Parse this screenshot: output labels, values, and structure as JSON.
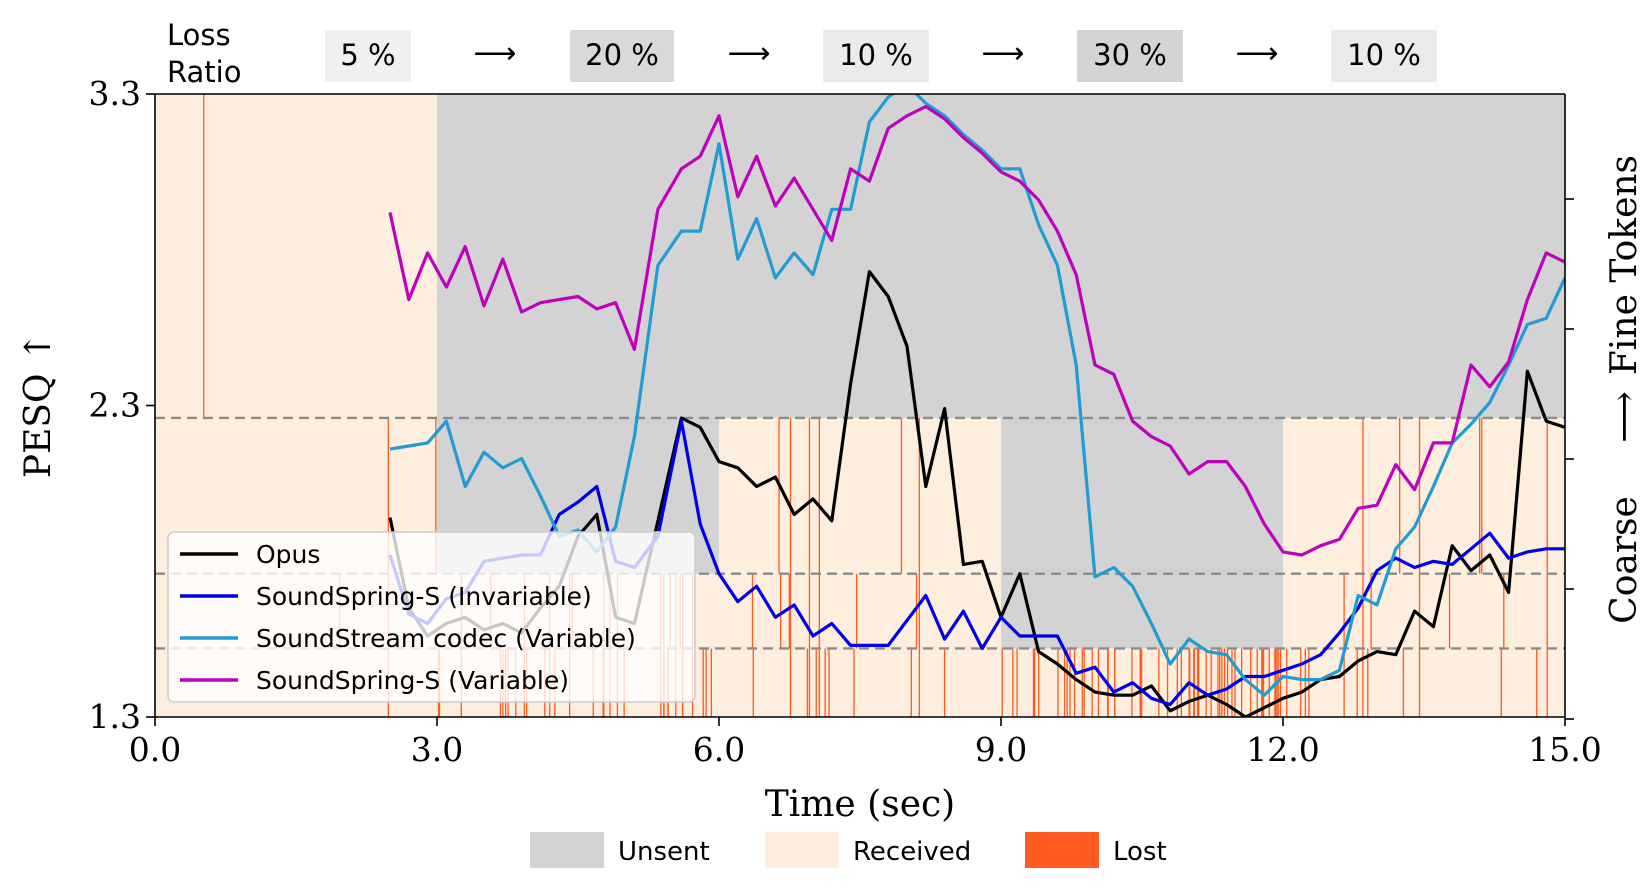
{
  "loss_ratio": {
    "label_line1": "Loss",
    "label_line2": "Ratio",
    "arrow": "⟶",
    "segments": [
      {
        "text": "5 %",
        "color": "#f0f0f0"
      },
      {
        "text": "20 %",
        "color": "#d9d9d9"
      },
      {
        "text": "10 %",
        "color": "#ebebeb"
      },
      {
        "text": "30 %",
        "color": "#d4d4d4"
      },
      {
        "text": "10 %",
        "color": "#ebebeb"
      }
    ]
  },
  "right_axis": {
    "label_bottom": "Coarse",
    "arrow": "⟶",
    "label_top": "Fine Tokens"
  },
  "colors": {
    "unsent": "#d3d3d3",
    "received": "#fdeedd",
    "lost": "#ff5a1f"
  },
  "chart_data": {
    "type": "line",
    "xlabel": "Time (sec)",
    "ylabel": "PESQ ↑",
    "xlim": [
      0,
      15
    ],
    "ylim": [
      1.3,
      3.3
    ],
    "xticks": [
      "0.0",
      "3.0",
      "6.0",
      "9.0",
      "12.0",
      "15.0"
    ],
    "yticks": [
      "1.3",
      "2.3",
      "3.3"
    ],
    "token_level_boundaries": [
      1.52,
      1.76,
      2.26
    ],
    "background_segments": [
      {
        "x0": 0,
        "x1": 3,
        "unsent_above": null
      },
      {
        "x0": 3,
        "x1": 6,
        "unsent_above": 1.76
      },
      {
        "x0": 6,
        "x1": 9,
        "unsent_above": 2.26
      },
      {
        "x0": 9,
        "x1": 12,
        "unsent_above": 1.52
      },
      {
        "x0": 12,
        "x1": 15,
        "unsent_above": 2.26
      }
    ],
    "series": [
      {
        "name": "Opus",
        "color": "#000000",
        "x": [
          2.5,
          2.7,
          2.9,
          3.1,
          3.3,
          3.5,
          3.7,
          3.9,
          4.1,
          4.3,
          4.5,
          4.7,
          4.9,
          5.1,
          5.35,
          5.6,
          5.8,
          6.0,
          6.2,
          6.4,
          6.6,
          6.8,
          7.0,
          7.2,
          7.4,
          7.6,
          7.8,
          8.0,
          8.2,
          8.4,
          8.6,
          8.8,
          9.0,
          9.2,
          9.4,
          9.6,
          9.8,
          10.0,
          10.2,
          10.4,
          10.6,
          10.8,
          11.0,
          11.2,
          11.4,
          11.6,
          11.8,
          12.0,
          12.2,
          12.4,
          12.6,
          12.8,
          13.0,
          13.2,
          13.4,
          13.6,
          13.8,
          14.0,
          14.2,
          14.4,
          14.6,
          14.8,
          15.0
        ],
        "values": [
          1.94,
          1.65,
          1.56,
          1.6,
          1.62,
          1.58,
          1.6,
          1.57,
          1.65,
          1.72,
          1.88,
          1.95,
          1.62,
          1.6,
          1.93,
          2.26,
          2.23,
          2.12,
          2.1,
          2.04,
          2.07,
          1.95,
          2.0,
          1.93,
          2.37,
          2.73,
          2.65,
          2.49,
          2.04,
          2.29,
          1.79,
          1.8,
          1.62,
          1.76,
          1.51,
          1.47,
          1.42,
          1.38,
          1.37,
          1.37,
          1.4,
          1.32,
          1.35,
          1.37,
          1.34,
          1.3,
          1.33,
          1.36,
          1.38,
          1.42,
          1.43,
          1.48,
          1.51,
          1.5,
          1.64,
          1.59,
          1.85,
          1.77,
          1.82,
          1.7,
          2.41,
          2.25,
          2.23
        ],
        "xmax": 15.0
      },
      {
        "name": "SoundSpring-S (Invariable)",
        "color": "#0000e6",
        "x": [
          2.5,
          2.7,
          2.9,
          3.1,
          3.3,
          3.5,
          3.7,
          3.9,
          4.1,
          4.3,
          4.5,
          4.7,
          4.9,
          5.1,
          5.35,
          5.6,
          5.8,
          6.0,
          6.2,
          6.4,
          6.6,
          6.8,
          7.0,
          7.2,
          7.4,
          7.6,
          7.8,
          8.0,
          8.2,
          8.4,
          8.6,
          8.8,
          9.0,
          9.2,
          9.4,
          9.6,
          9.8,
          10.0,
          10.2,
          10.4,
          10.6,
          10.8,
          11.0,
          11.2,
          11.4,
          11.6,
          11.8,
          12.0,
          12.2,
          12.4,
          12.6,
          12.8,
          13.0,
          13.2,
          13.4,
          13.6,
          13.8,
          14.0,
          14.2,
          14.4,
          14.6,
          14.8,
          15.0
        ],
        "values": [
          1.82,
          1.63,
          1.6,
          1.68,
          1.7,
          1.8,
          1.81,
          1.82,
          1.82,
          1.95,
          1.99,
          2.04,
          1.8,
          1.78,
          1.88,
          2.25,
          1.92,
          1.76,
          1.67,
          1.72,
          1.62,
          1.66,
          1.56,
          1.6,
          1.53,
          1.53,
          1.53,
          1.61,
          1.69,
          1.55,
          1.64,
          1.52,
          1.62,
          1.56,
          1.56,
          1.56,
          1.44,
          1.46,
          1.38,
          1.41,
          1.36,
          1.34,
          1.41,
          1.37,
          1.39,
          1.43,
          1.43,
          1.45,
          1.47,
          1.5,
          1.57,
          1.65,
          1.77,
          1.81,
          1.78,
          1.8,
          1.79,
          1.84,
          1.89,
          1.81,
          1.83,
          1.84,
          1.84
        ],
        "xmax": 15.0
      },
      {
        "name": "SoundStream codec (Variable)",
        "color": "#1f9cd4",
        "x": [
          2.5,
          2.7,
          2.9,
          3.1,
          3.3,
          3.5,
          3.7,
          3.9,
          4.1,
          4.3,
          4.5,
          4.7,
          4.9,
          5.1,
          5.35,
          5.6,
          5.8,
          6.0,
          6.2,
          6.4,
          6.6,
          6.8,
          7.0,
          7.2,
          7.4,
          7.6,
          7.8,
          8.0,
          8.2,
          8.4,
          8.6,
          8.8,
          9.0,
          9.2,
          9.4,
          9.6,
          9.8,
          10.0,
          10.2,
          10.4,
          10.6,
          10.8,
          11.0,
          11.2,
          11.4,
          11.6,
          11.8,
          12.0,
          12.2,
          12.4,
          12.6,
          12.8,
          13.0,
          13.2,
          13.4,
          13.6,
          13.8,
          14.0,
          14.2,
          14.4,
          14.6,
          14.8,
          15.0
        ],
        "values": [
          2.16,
          2.17,
          2.18,
          2.25,
          2.04,
          2.15,
          2.1,
          2.13,
          2.01,
          1.88,
          1.9,
          1.83,
          1.91,
          2.2,
          2.75,
          2.86,
          2.86,
          3.14,
          2.77,
          2.9,
          2.71,
          2.79,
          2.72,
          2.93,
          2.93,
          3.21,
          3.29,
          3.33,
          3.27,
          3.23,
          3.17,
          3.12,
          3.06,
          3.06,
          2.88,
          2.75,
          2.43,
          1.75,
          1.78,
          1.72,
          1.6,
          1.47,
          1.55,
          1.51,
          1.5,
          1.42,
          1.37,
          1.43,
          1.42,
          1.42,
          1.45,
          1.69,
          1.66,
          1.84,
          1.91,
          2.04,
          2.18,
          2.24,
          2.31,
          2.43,
          2.56,
          2.58,
          2.71
        ],
        "xmax": 15.0
      },
      {
        "name": "SoundSpring-S (Variable)",
        "color": "#bf00bf",
        "x": [
          2.5,
          2.7,
          2.9,
          3.1,
          3.3,
          3.5,
          3.7,
          3.9,
          4.1,
          4.3,
          4.5,
          4.7,
          4.9,
          5.1,
          5.35,
          5.6,
          5.8,
          6.0,
          6.2,
          6.4,
          6.6,
          6.8,
          7.0,
          7.2,
          7.4,
          7.6,
          7.8,
          8.0,
          8.2,
          8.4,
          8.6,
          8.8,
          9.0,
          9.2,
          9.4,
          9.6,
          9.8,
          10.0,
          10.2,
          10.4,
          10.6,
          10.8,
          11.0,
          11.2,
          11.4,
          11.6,
          11.8,
          12.0,
          12.2,
          12.4,
          12.6,
          12.8,
          13.0,
          13.2,
          13.4,
          13.6,
          13.8,
          14.0,
          14.2,
          14.4,
          14.6,
          14.8,
          15.0
        ],
        "values": [
          2.92,
          2.64,
          2.79,
          2.68,
          2.81,
          2.62,
          2.77,
          2.6,
          2.63,
          2.64,
          2.65,
          2.61,
          2.63,
          2.48,
          2.93,
          3.06,
          3.1,
          3.23,
          2.97,
          3.1,
          2.94,
          3.03,
          2.93,
          2.83,
          3.06,
          3.02,
          3.19,
          3.23,
          3.26,
          3.22,
          3.16,
          3.11,
          3.05,
          3.02,
          2.96,
          2.86,
          2.72,
          2.43,
          2.4,
          2.25,
          2.2,
          2.17,
          2.08,
          2.12,
          2.12,
          2.04,
          1.92,
          1.83,
          1.82,
          1.85,
          1.87,
          1.97,
          1.98,
          2.11,
          2.03,
          2.18,
          2.18,
          2.43,
          2.36,
          2.44,
          2.64,
          2.79,
          2.76
        ],
        "xmax": 15.0
      }
    ]
  },
  "legend_lines": {
    "entries": [
      "Opus",
      "SoundSpring-S (Invariable)",
      "SoundStream codec (Variable)",
      "SoundSpring-S (Variable)"
    ]
  },
  "legend_bg": {
    "entries": [
      {
        "label": "Unsent",
        "color": "#d3d3d3"
      },
      {
        "label": "Received",
        "color": "#fdeedd"
      },
      {
        "label": "Lost",
        "color": "#ff5a1f"
      }
    ]
  }
}
